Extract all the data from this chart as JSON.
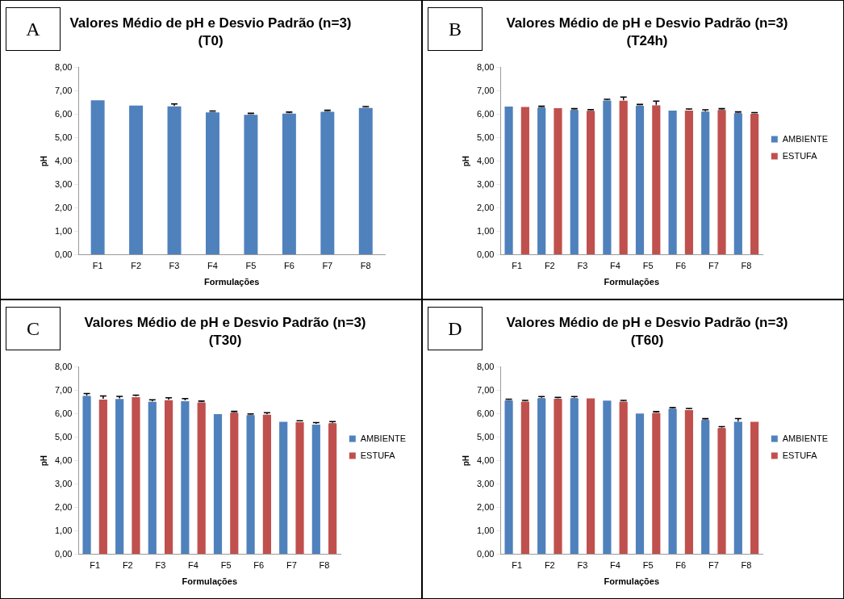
{
  "chart_data": [
    {
      "type": "bar",
      "title": "Valores Médio de pH e Desvio Padrão (n=3)",
      "subtitle": "(T0)",
      "xlabel": "Formulações",
      "ylabel": "pH",
      "annotations": [
        "A"
      ],
      "categories": [
        "F1",
        "F2",
        "F3",
        "F4",
        "F5",
        "F6",
        "F7",
        "F8"
      ],
      "values": [
        6.64,
        6.41,
        6.38,
        6.12,
        6.02,
        6.07,
        6.15,
        6.31
      ],
      "color": "#4f81bd",
      "errors": [
        null,
        null,
        0.07,
        0.03,
        0.03,
        0.03,
        0.03,
        0.03
      ],
      "ylim": [
        0,
        8
      ],
      "yticks": [
        {
          "value": 0,
          "label": "0,00"
        },
        {
          "value": 1,
          "label": "1,00"
        },
        {
          "value": 2,
          "label": "2,00"
        },
        {
          "value": 3,
          "label": "3,00"
        },
        {
          "value": 4,
          "label": "4,00"
        },
        {
          "value": 5,
          "label": "5,00"
        },
        {
          "value": 6,
          "label": "6,00"
        },
        {
          "value": 7,
          "label": "7,00"
        },
        {
          "value": 8,
          "label": "8,00"
        }
      ],
      "grid": false,
      "legend": false
    },
    {
      "type": "bar",
      "title": "Valores Médio de pH e Desvio Padrão (n=3)",
      "subtitle": "(T24h)",
      "xlabel": "Formulações",
      "ylabel": "pH",
      "annotations": [
        "B"
      ],
      "categories": [
        "F1",
        "F2",
        "F3",
        "F4",
        "F5",
        "F6",
        "F7",
        "F8"
      ],
      "series": [
        {
          "name": "AMBIENTE",
          "color": "#4f81bd",
          "values": [
            6.37,
            6.32,
            6.22,
            6.62,
            6.4,
            6.2,
            6.15,
            6.08
          ],
          "errors": [
            null,
            0.03,
            0.03,
            0.03,
            0.03,
            null,
            0.05,
            0.03
          ]
        },
        {
          "name": "ESTUFA",
          "color": "#c0504d",
          "values": [
            6.35,
            6.3,
            6.18,
            6.62,
            6.42,
            6.2,
            6.22,
            6.05
          ],
          "errors": [
            null,
            null,
            0.03,
            0.12,
            0.15,
            0.03,
            0.03,
            0.03
          ]
        }
      ],
      "ylim": [
        0,
        8
      ],
      "yticks": [
        {
          "value": 0,
          "label": "0,00"
        },
        {
          "value": 1,
          "label": "1,00"
        },
        {
          "value": 2,
          "label": "2,00"
        },
        {
          "value": 3,
          "label": "3,00"
        },
        {
          "value": 4,
          "label": "4,00"
        },
        {
          "value": 5,
          "label": "5,00"
        },
        {
          "value": 6,
          "label": "6,00"
        },
        {
          "value": 7,
          "label": "7,00"
        },
        {
          "value": 8,
          "label": "8,00"
        }
      ],
      "grid": false,
      "legend": "right"
    },
    {
      "type": "bar",
      "title": "Valores Médio de pH e Desvio Padrão (n=3)",
      "subtitle": "(T30)",
      "xlabel": "Formulações",
      "ylabel": "pH",
      "annotations": [
        "C"
      ],
      "categories": [
        "F1",
        "F2",
        "F3",
        "F4",
        "F5",
        "F6",
        "F7",
        "F8"
      ],
      "series": [
        {
          "name": "AMBIENTE",
          "color": "#4f81bd",
          "values": [
            6.8,
            6.67,
            6.55,
            6.58,
            6.03,
            5.97,
            5.7,
            5.58
          ],
          "errors": [
            0.07,
            0.08,
            0.05,
            0.08,
            null,
            0.03,
            null,
            0.05
          ]
        },
        {
          "name": "ESTUFA",
          "color": "#c0504d",
          "values": [
            6.65,
            6.75,
            6.62,
            6.52,
            6.08,
            6.0,
            5.68,
            5.63
          ],
          "errors": [
            0.12,
            0.05,
            0.07,
            0.03,
            0.03,
            0.05,
            0.03,
            0.04
          ]
        }
      ],
      "ylim": [
        0,
        8
      ],
      "yticks": [
        {
          "value": 0,
          "label": "0,00"
        },
        {
          "value": 1,
          "label": "1,00"
        },
        {
          "value": 2,
          "label": "2,00"
        },
        {
          "value": 3,
          "label": "3,00"
        },
        {
          "value": 4,
          "label": "4,00"
        },
        {
          "value": 5,
          "label": "5,00"
        },
        {
          "value": 6,
          "label": "6,00"
        },
        {
          "value": 7,
          "label": "7,00"
        },
        {
          "value": 8,
          "label": "8,00"
        }
      ],
      "grid": false,
      "legend": "right"
    },
    {
      "type": "bar",
      "title": "Valores Médio de pH e Desvio Padrão (n=3)",
      "subtitle": "(T60)",
      "xlabel": "Formulações",
      "ylabel": "pH",
      "annotations": [
        "D"
      ],
      "categories": [
        "F1",
        "F2",
        "F3",
        "F4",
        "F5",
        "F6",
        "F7",
        "F8"
      ],
      "series": [
        {
          "name": "AMBIENTE",
          "color": "#4f81bd",
          "values": [
            6.6,
            6.7,
            6.7,
            6.6,
            6.05,
            6.25,
            5.77,
            5.7
          ],
          "errors": [
            0.03,
            0.04,
            0.04,
            null,
            null,
            0.03,
            0.03,
            0.1
          ]
        },
        {
          "name": "ESTUFA",
          "color": "#c0504d",
          "values": [
            6.55,
            6.67,
            6.7,
            6.55,
            6.07,
            6.2,
            5.42,
            5.7
          ],
          "errors": [
            0.03,
            0.04,
            null,
            0.03,
            0.03,
            0.03,
            0.04,
            null
          ]
        }
      ],
      "ylim": [
        0,
        8
      ],
      "yticks": [
        {
          "value": 0,
          "label": "0,00"
        },
        {
          "value": 1,
          "label": "1,00"
        },
        {
          "value": 2,
          "label": "2,00"
        },
        {
          "value": 3,
          "label": "3,00"
        },
        {
          "value": 4,
          "label": "4,00"
        },
        {
          "value": 5,
          "label": "5,00"
        },
        {
          "value": 6,
          "label": "6,00"
        },
        {
          "value": 7,
          "label": "7,00"
        },
        {
          "value": 8,
          "label": "8,00"
        }
      ],
      "grid": false,
      "legend": "right"
    }
  ]
}
